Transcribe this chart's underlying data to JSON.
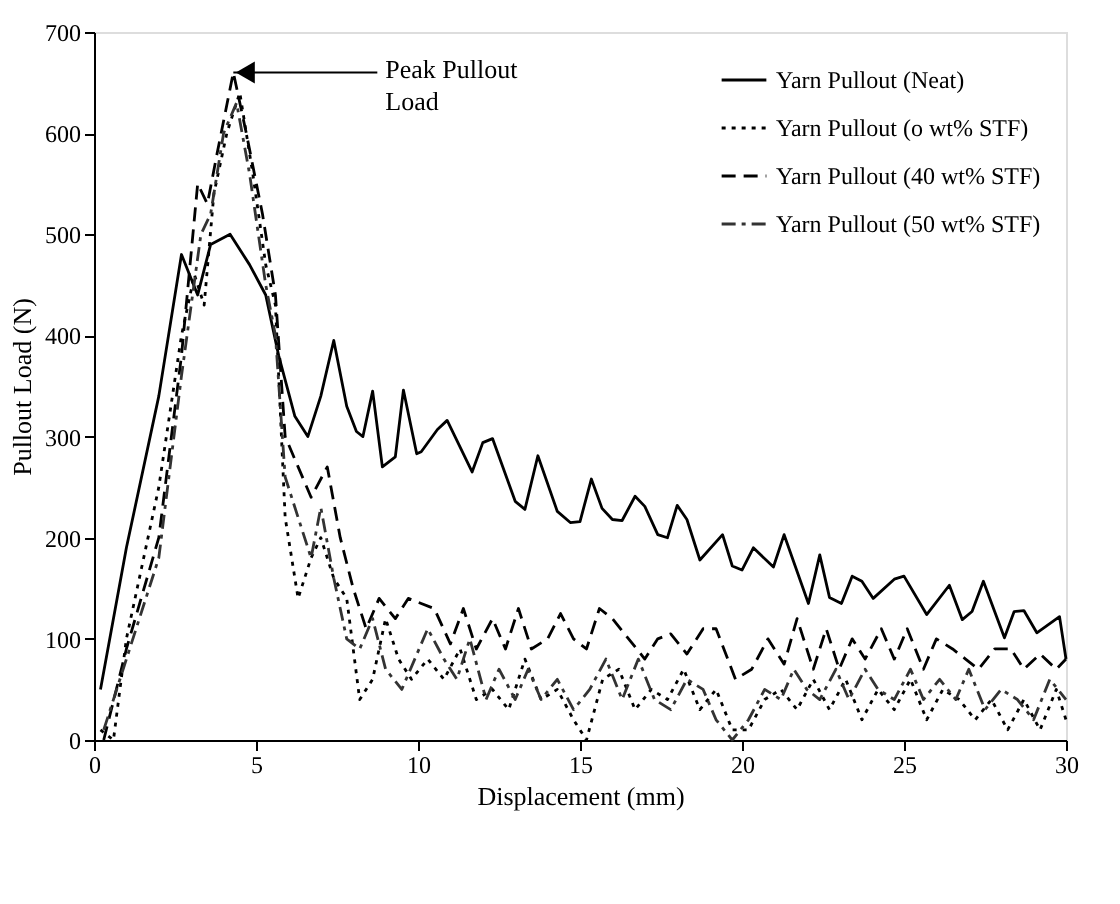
{
  "chart_data": {
    "type": "line",
    "xlabel": "Displacement (mm)",
    "ylabel": "Pullout Load (N)",
    "xlim": [
      0,
      30
    ],
    "xticks": [
      0,
      5,
      10,
      15,
      20,
      25,
      30
    ],
    "ylim": [
      0,
      700
    ],
    "yticks": [
      0,
      100,
      200,
      300,
      400,
      500,
      600,
      700
    ],
    "grid": false,
    "legend": "top right",
    "marker": "none",
    "annotations": [
      {
        "text": "Peak Pullout Load",
        "x": 4.3,
        "y": 660
      }
    ],
    "series": [
      {
        "name": "Yarn Pullout (Neat)",
        "color": "#000000",
        "line_style": "solid",
        "x": [
          0.2,
          1,
          2,
          2.7,
          3.2,
          3.6,
          4.2,
          4.8,
          5.3,
          5.7,
          6.2,
          6.6,
          7.0,
          7.4,
          7.8,
          8.1,
          8.3,
          8.6,
          8.9,
          9.3,
          9.55,
          9.96,
          10.1,
          10.6,
          10.9,
          11.67,
          12.0,
          12.3,
          13.0,
          13.3,
          13.7,
          14.3,
          14.7,
          15.0,
          15.35,
          15.68,
          16.0,
          16.3,
          16.7,
          17.0,
          17.4,
          17.7,
          18.0,
          18.3,
          18.7,
          19.4,
          19.7,
          20.0,
          20.35,
          20.97,
          21.3,
          22.05,
          22.4,
          22.7,
          23.07,
          23.4,
          23.7,
          24.05,
          24.7,
          25.0,
          25.7,
          26.4,
          26.8,
          27.1,
          27.45,
          28.1,
          28.4,
          28.7,
          29.1,
          29.8,
          30
        ],
        "values": [
          50,
          190,
          340,
          480,
          440,
          490,
          500,
          470,
          440,
          380,
          320,
          300,
          340,
          395,
          330,
          305,
          300,
          345,
          270,
          280,
          346,
          283,
          285,
          307,
          316,
          265,
          294,
          298,
          236,
          228,
          281,
          226,
          215,
          216,
          258,
          229,
          218,
          217,
          241,
          231,
          203,
          200,
          232,
          218,
          178,
          203,
          172,
          168,
          190,
          171,
          203,
          135,
          183,
          141,
          135,
          162,
          157,
          140,
          159,
          162,
          124,
          153,
          119,
          127,
          157,
          101,
          127,
          128,
          106,
          122,
          80
        ]
      },
      {
        "name": "Yarn Pullout (o wt% STF)",
        "color": "#000000",
        "line_style": "dotted",
        "x": [
          0.2,
          0.6,
          1,
          2,
          2.7,
          3.1,
          3.4,
          3.7,
          4.1,
          4.5,
          4.9,
          5.3,
          5.6,
          5.9,
          6.3,
          6.7,
          7.0,
          7.4,
          7.8,
          8.2,
          8.6,
          9.0,
          9.4,
          9.8,
          10.3,
          10.8,
          11.3,
          11.8,
          12.3,
          12.8,
          13.3,
          13.8,
          14.3,
          14.8,
          15.2,
          15.7,
          16.2,
          16.7,
          17.2,
          17.7,
          18.2,
          18.7,
          19.2,
          19.7,
          20.2,
          20.7,
          21.2,
          21.7,
          22.2,
          22.7,
          23.2,
          23.7,
          24.2,
          24.7,
          25.2,
          25.7,
          26.2,
          26.7,
          27.2,
          27.7,
          28.2,
          28.7,
          29.2,
          29.7,
          30
        ],
        "values": [
          10,
          0,
          100,
          250,
          400,
          460,
          430,
          540,
          600,
          640,
          560,
          470,
          430,
          220,
          140,
          180,
          200,
          160,
          140,
          40,
          60,
          120,
          80,
          60,
          80,
          60,
          90,
          40,
          50,
          30,
          80,
          40,
          50,
          20,
          0,
          60,
          70,
          30,
          50,
          40,
          70,
          30,
          50,
          10,
          10,
          40,
          50,
          30,
          60,
          30,
          60,
          20,
          50,
          30,
          60,
          20,
          50,
          40,
          20,
          40,
          10,
          40,
          10,
          50,
          20
        ]
      },
      {
        "name": "Yarn Pullout (40 wt% STF)",
        "color": "#000000",
        "line_style": "dashed",
        "x": [
          0.3,
          1,
          2,
          2.7,
          3.2,
          3.5,
          3.8,
          4.3,
          4.7,
          5.2,
          5.6,
          5.9,
          6.3,
          6.7,
          7.2,
          7.6,
          8.0,
          8.4,
          8.8,
          9.3,
          9.7,
          10.1,
          10.5,
          11.0,
          11.4,
          11.8,
          12.3,
          12.7,
          13.1,
          13.5,
          14.0,
          14.4,
          14.8,
          15.2,
          15.6,
          16.0,
          16.5,
          17.0,
          17.4,
          17.8,
          18.3,
          18.8,
          19.2,
          19.8,
          20.3,
          20.8,
          21.3,
          21.7,
          22.2,
          22.6,
          23.0,
          23.4,
          23.8,
          24.3,
          24.7,
          25.1,
          25.6,
          26.0,
          26.5,
          26.9,
          27.3,
          27.8,
          28.3,
          28.7,
          29.2,
          29.7,
          30
        ],
        "values": [
          0,
          90,
          200,
          380,
          550,
          530,
          580,
          660,
          600,
          520,
          440,
          300,
          270,
          240,
          270,
          200,
          150,
          110,
          140,
          120,
          140,
          135,
          130,
          95,
          130,
          90,
          120,
          90,
          130,
          90,
          100,
          125,
          100,
          90,
          130,
          120,
          100,
          80,
          100,
          105,
          85,
          110,
          110,
          60,
          70,
          100,
          75,
          120,
          70,
          110,
          70,
          100,
          80,
          110,
          80,
          110,
          70,
          100,
          90,
          80,
          70,
          90,
          90,
          70,
          85,
          70,
          80
        ]
      },
      {
        "name": "Yarn Pullout (50 wt% STF)",
        "color": "#333333",
        "line_style": "dashdot",
        "x": [
          0.3,
          1,
          2,
          2.7,
          3.3,
          3.6,
          4.0,
          4.4,
          4.8,
          5.3,
          5.6,
          5.9,
          6.3,
          6.7,
          7.0,
          7.4,
          7.8,
          8.2,
          8.6,
          9.0,
          9.5,
          9.9,
          10.3,
          10.8,
          11.2,
          11.6,
          12.1,
          12.5,
          13.0,
          13.4,
          13.8,
          14.3,
          14.8,
          15.3,
          15.8,
          16.3,
          16.8,
          17.3,
          17.8,
          18.3,
          18.8,
          19.2,
          19.7,
          20.2,
          20.7,
          21.2,
          21.6,
          22.0,
          22.4,
          22.9,
          23.3,
          23.8,
          24.2,
          24.7,
          25.2,
          25.6,
          26.1,
          26.6,
          27.0,
          27.5,
          28.0,
          28.5,
          29.0,
          29.5,
          30
        ],
        "values": [
          10,
          80,
          180,
          360,
          500,
          520,
          600,
          630,
          560,
          450,
          400,
          260,
          220,
          180,
          230,
          160,
          100,
          90,
          120,
          70,
          50,
          80,
          110,
          80,
          60,
          100,
          40,
          70,
          40,
          70,
          40,
          60,
          30,
          50,
          80,
          40,
          80,
          40,
          30,
          60,
          50,
          20,
          0,
          20,
          50,
          40,
          70,
          50,
          40,
          70,
          40,
          70,
          50,
          40,
          70,
          40,
          60,
          40,
          70,
          30,
          50,
          40,
          20,
          60,
          40
        ]
      }
    ]
  }
}
